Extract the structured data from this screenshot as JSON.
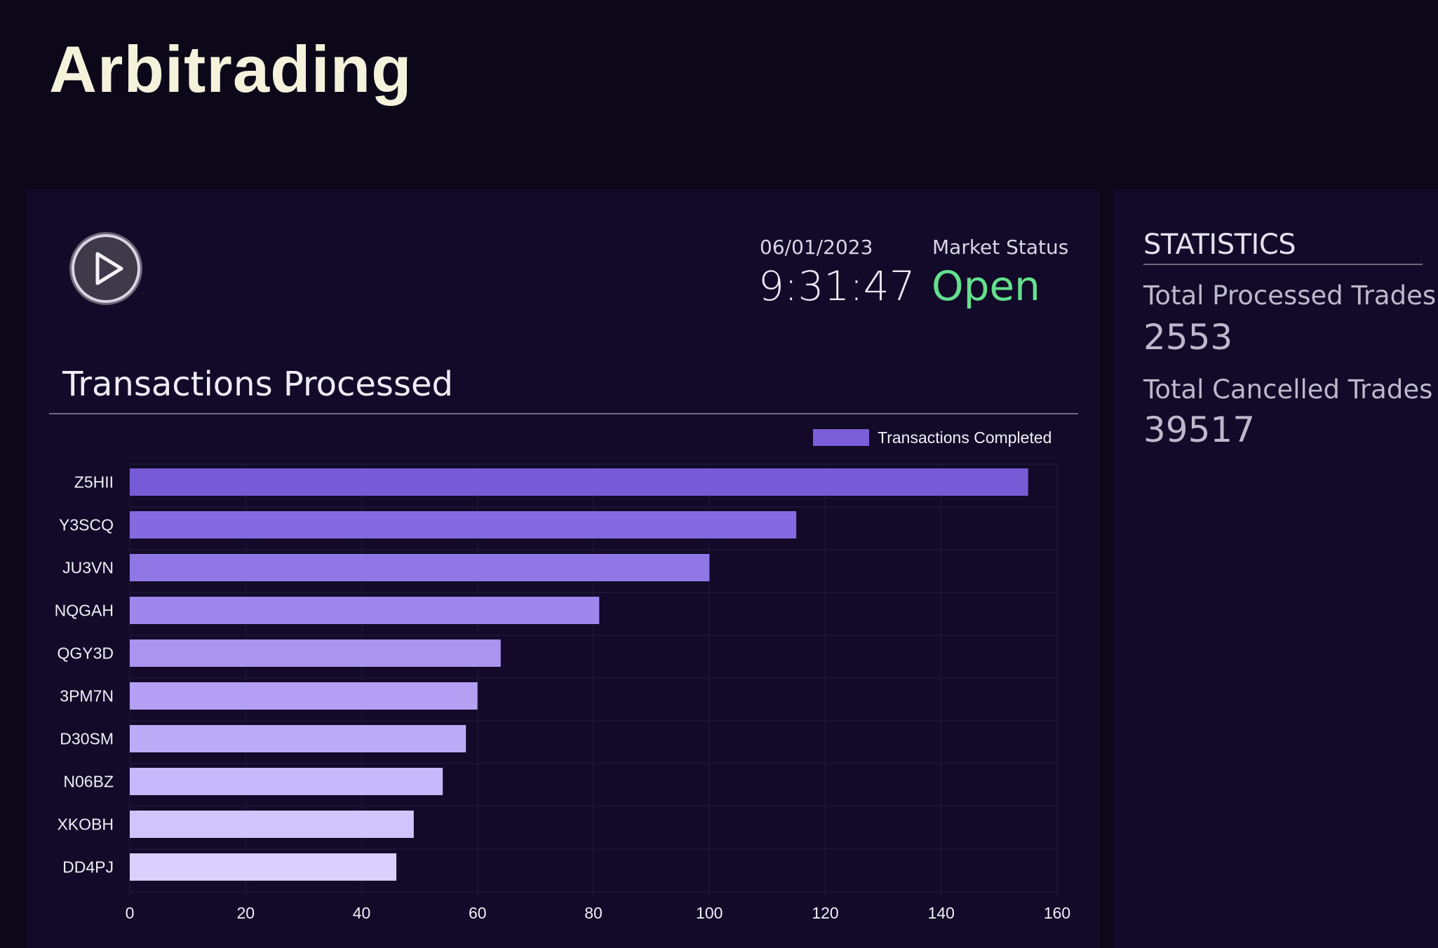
{
  "app": {
    "logo_text": "Arbitrading"
  },
  "header": {
    "date": "06/01/2023",
    "time": "9:31:47",
    "market_status_label": "Market Status",
    "market_status_value": "Open",
    "play_icon": "play-icon"
  },
  "chart_section": {
    "title": "Transactions Processed"
  },
  "chart_data": {
    "type": "bar",
    "orientation": "horizontal",
    "categories": [
      "Z5HII",
      "Y3SCQ",
      "JU3VN",
      "NQGAH",
      "QGY3D",
      "3PM7N",
      "D30SM",
      "N06BZ",
      "XKOBH",
      "DD4PJ"
    ],
    "series": [
      {
        "name": "Transactions Completed",
        "values": [
          155,
          115,
          100,
          81,
          64,
          60,
          58,
          54,
          49,
          46
        ]
      }
    ],
    "colors": [
      "#775bd6",
      "#846ae0",
      "#8f78e6",
      "#9d87ec",
      "#a994f0",
      "#b3a0f4",
      "#bcabf7",
      "#c6b8fa",
      "#d0c5fc",
      "#dad0fd"
    ],
    "legend_color": "#7a5fd9",
    "xlim": [
      0,
      160
    ],
    "xticks": [
      0,
      20,
      40,
      60,
      80,
      100,
      120,
      140,
      160
    ],
    "legend_position": "top-right",
    "grid": true
  },
  "statistics": {
    "title": "STATISTICS",
    "processed_label": "Total Processed Trades",
    "processed_value": "2553",
    "cancelled_label": "Total Cancelled Trades",
    "cancelled_value": "39517"
  }
}
